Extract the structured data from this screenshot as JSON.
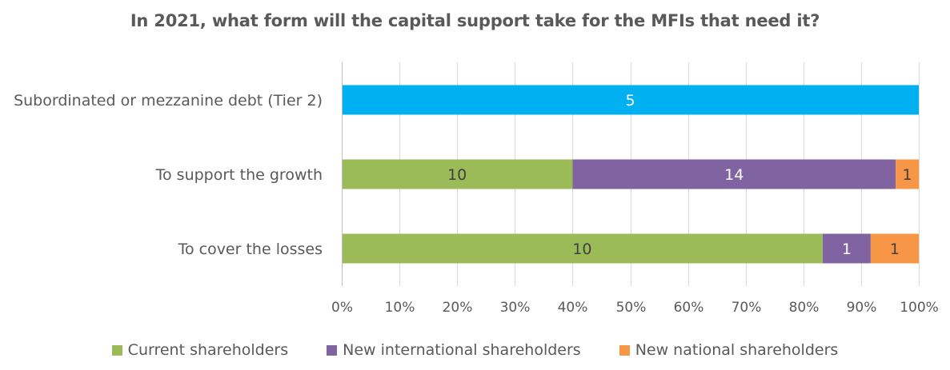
{
  "chart_data": {
    "type": "bar",
    "orientation": "horizontal",
    "stacked": "percent",
    "title": "In 2021, what form will the capital support take for the MFIs that need it?",
    "categories": [
      "Subordinated or mezzanine debt (Tier 2)",
      "To support the growth",
      "To cover the losses"
    ],
    "series": [
      {
        "name": "Current shareholders",
        "color": "#9BBB59",
        "values": [
          0,
          10,
          10
        ],
        "labels": [
          "",
          "10",
          "10"
        ],
        "label_color": "#404040"
      },
      {
        "name": "New international shareholders",
        "color": "#8064A2",
        "values": [
          0,
          14,
          1
        ],
        "labels": [
          "",
          "14",
          "1"
        ],
        "label_color": "#ffffff"
      },
      {
        "name": "New national shareholders",
        "color": "#F79646",
        "values": [
          0,
          1,
          1
        ],
        "labels": [
          "",
          "1",
          "1"
        ],
        "label_color": "#404040"
      },
      {
        "color": "#00B0F0",
        "values": [
          5,
          0,
          0
        ],
        "labels": [
          "5",
          "",
          ""
        ],
        "label_color": "#ffffff"
      }
    ],
    "xlim": [
      0,
      100
    ],
    "x_ticks": [
      "0%",
      "10%",
      "20%",
      "30%",
      "40%",
      "50%",
      "60%",
      "70%",
      "80%",
      "90%",
      "100%"
    ],
    "grid": true,
    "legend_position": "bottom"
  }
}
